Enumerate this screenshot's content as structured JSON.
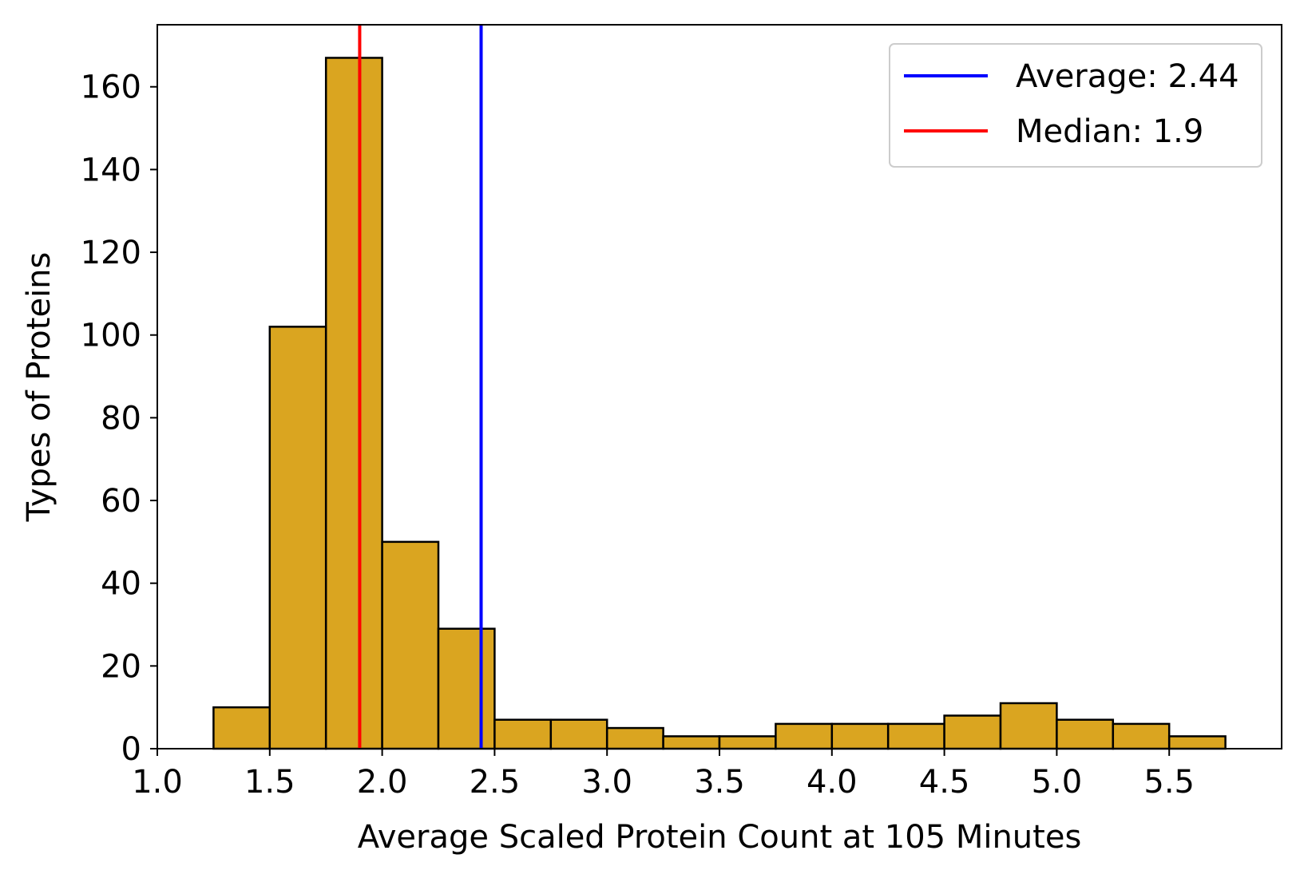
{
  "chart_data": {
    "type": "bar",
    "histogram": true,
    "bin_width": 0.25,
    "bins": [
      {
        "start": 1.25,
        "end": 1.5,
        "count": 10
      },
      {
        "start": 1.5,
        "end": 1.75,
        "count": 102
      },
      {
        "start": 1.75,
        "end": 2.0,
        "count": 167
      },
      {
        "start": 2.0,
        "end": 2.25,
        "count": 50
      },
      {
        "start": 2.25,
        "end": 2.5,
        "count": 29
      },
      {
        "start": 2.5,
        "end": 2.75,
        "count": 7
      },
      {
        "start": 2.75,
        "end": 3.0,
        "count": 7
      },
      {
        "start": 3.0,
        "end": 3.25,
        "count": 5
      },
      {
        "start": 3.25,
        "end": 3.5,
        "count": 3
      },
      {
        "start": 3.5,
        "end": 3.75,
        "count": 3
      },
      {
        "start": 3.75,
        "end": 4.0,
        "count": 6
      },
      {
        "start": 4.0,
        "end": 4.25,
        "count": 6
      },
      {
        "start": 4.25,
        "end": 4.5,
        "count": 6
      },
      {
        "start": 4.5,
        "end": 4.75,
        "count": 8
      },
      {
        "start": 4.75,
        "end": 5.0,
        "count": 11
      },
      {
        "start": 5.0,
        "end": 5.25,
        "count": 7
      },
      {
        "start": 5.25,
        "end": 5.5,
        "count": 6
      },
      {
        "start": 5.5,
        "end": 5.75,
        "count": 3
      }
    ],
    "reference_lines": [
      {
        "label": "Average: 2.44",
        "value": 2.44,
        "color": "#0000ff"
      },
      {
        "label": "Median: 1.9",
        "value": 1.9,
        "color": "#ff0000"
      }
    ],
    "xlabel": "Average Scaled Protein Count at 105 Minutes",
    "ylabel": "Types of Proteins",
    "xlim": [
      1.0,
      6.0
    ],
    "ylim": [
      0,
      175
    ],
    "xticks": [
      1.0,
      1.5,
      2.0,
      2.5,
      3.0,
      3.5,
      4.0,
      4.5,
      5.0,
      5.5
    ],
    "xtick_labels": [
      "1.0",
      "1.5",
      "2.0",
      "2.5",
      "3.0",
      "3.5",
      "4.0",
      "4.5",
      "5.0",
      "5.5"
    ],
    "yticks": [
      0,
      20,
      40,
      60,
      80,
      100,
      120,
      140,
      160
    ],
    "ytick_labels": [
      "0",
      "20",
      "40",
      "60",
      "80",
      "100",
      "120",
      "140",
      "160"
    ],
    "bar_color": "#daa520",
    "bar_edge_color": "#000000",
    "grid": false,
    "legend_position": "top-right"
  }
}
